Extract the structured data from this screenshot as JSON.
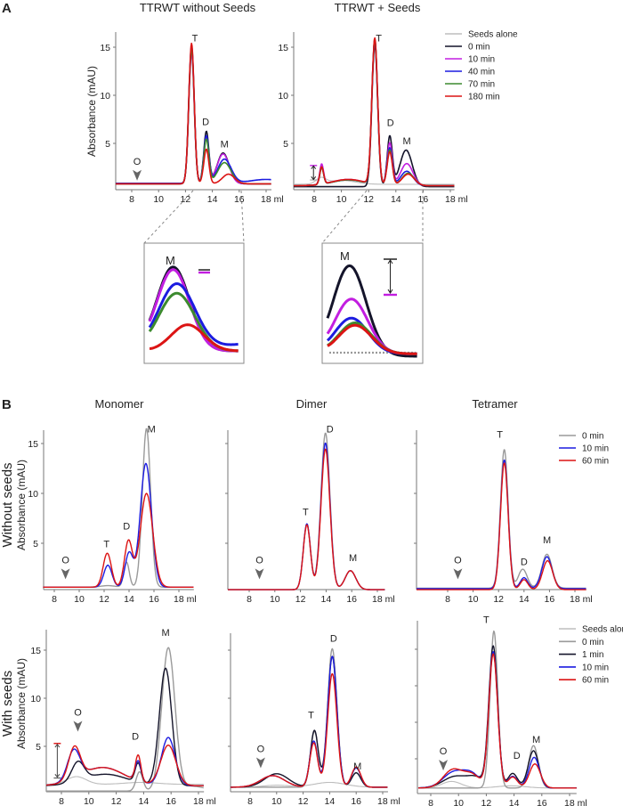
{
  "figure": {
    "panel_a_letter": "A",
    "panel_b_letter": "B",
    "panel_a_titles": [
      "TTRWT without Seeds",
      "TTRWT + Seeds"
    ],
    "panel_b_titles": [
      "Monomer",
      "Dimer",
      "Tetramer"
    ],
    "row_labels": [
      "Without seeds",
      "With seeds"
    ],
    "ylabel": "Absorbance (mAU)",
    "inset_label": "M"
  },
  "colors": {
    "seeds_alone": "#bdbdbd",
    "black": "#14142a",
    "gray": "#9a9a9a",
    "magenta": "#c21ee0",
    "blue": "#1c1ce0",
    "green": "#3c8a2e",
    "red": "#dc1414"
  },
  "chart_data": [
    {
      "id": "A1",
      "type": "line",
      "title": "TTRWT without Seeds",
      "xlabel_unit": "ml",
      "xticks": [
        8,
        10,
        12,
        14,
        16,
        18
      ],
      "yticks": [
        5,
        10,
        15
      ],
      "show_ytick_labels": true,
      "ylabel": "Absorbance (mAU)",
      "annotations": [
        "T",
        "D",
        "M",
        "O"
      ],
      "note": "series given as baseline plus peaks [elution volume ml, height mAU, width ml]",
      "series": [
        {
          "name": "0 min",
          "color": "black",
          "baseline": 0.8,
          "peaks": [
            [
              12.45,
              14.2,
              0.2
            ],
            [
              13.55,
              5.4,
              0.19
            ],
            [
              14.8,
              3.2,
              0.45
            ]
          ]
        },
        {
          "name": "10 min",
          "color": "magenta",
          "baseline": 0.8,
          "peaks": [
            [
              12.45,
              13.6,
              0.2
            ],
            [
              13.55,
              4.7,
              0.19
            ],
            [
              14.8,
              3.1,
              0.45
            ]
          ]
        },
        {
          "name": "40 min",
          "color": "blue",
          "baseline": 0.85,
          "peaks": [
            [
              12.45,
              14.3,
              0.2
            ],
            [
              13.55,
              4.9,
              0.19
            ],
            [
              14.9,
              2.5,
              0.5
            ],
            [
              18,
              0.4,
              1.2
            ]
          ]
        },
        {
          "name": "70 min",
          "color": "green",
          "baseline": 0.8,
          "peaks": [
            [
              12.45,
              14.0,
              0.2
            ],
            [
              13.55,
              4.6,
              0.19
            ],
            [
              14.9,
              2.2,
              0.5
            ]
          ]
        },
        {
          "name": "180 min",
          "color": "red",
          "baseline": 0.8,
          "peaks": [
            [
              12.45,
              14.6,
              0.2
            ],
            [
              13.55,
              3.6,
              0.19
            ],
            [
              15.2,
              1.0,
              0.45
            ]
          ]
        }
      ]
    },
    {
      "id": "A2",
      "type": "line",
      "title": "TTRWT + Seeds",
      "xlabel_unit": "ml",
      "xticks": [
        8,
        10,
        12,
        14,
        16,
        18
      ],
      "yticks": [
        5,
        10,
        15
      ],
      "show_ytick_labels": true,
      "annotations": [
        "T",
        "D",
        "M"
      ],
      "legend": [
        "Seeds alone",
        "0 min",
        "10 min",
        "40 min",
        "70 min",
        "180 min"
      ],
      "legend_position": "top-right",
      "series": [
        {
          "name": "Seeds alone",
          "color": "seeds_alone",
          "baseline": 0.75,
          "peaks": [
            [
              8.5,
              0.6,
              0.35
            ],
            [
              10,
              0.4,
              1.0
            ]
          ]
        },
        {
          "name": "0 min",
          "color": "black",
          "baseline": 0.5,
          "peaks": [
            [
              12.45,
              14.8,
              0.21
            ],
            [
              13.55,
              5.2,
              0.19
            ],
            [
              14.75,
              3.8,
              0.45
            ]
          ]
        },
        {
          "name": "10 min",
          "color": "magenta",
          "baseline": 0.6,
          "peaks": [
            [
              8.55,
              2.1,
              0.14
            ],
            [
              10.5,
              0.65,
              1.2
            ],
            [
              12.45,
              15.0,
              0.21
            ],
            [
              13.55,
              4.4,
              0.19
            ],
            [
              14.8,
              2.3,
              0.45
            ]
          ]
        },
        {
          "name": "40 min",
          "color": "blue",
          "baseline": 0.6,
          "peaks": [
            [
              8.55,
              1.8,
              0.14
            ],
            [
              10.5,
              0.6,
              1.2
            ],
            [
              12.45,
              15.0,
              0.21
            ],
            [
              13.55,
              3.9,
              0.19
            ],
            [
              14.8,
              1.5,
              0.45
            ]
          ]
        },
        {
          "name": "70 min",
          "color": "green",
          "baseline": 0.6,
          "peaks": [
            [
              8.55,
              1.7,
              0.14
            ],
            [
              10.5,
              0.6,
              1.2
            ],
            [
              12.45,
              15.1,
              0.21
            ],
            [
              13.55,
              3.7,
              0.19
            ],
            [
              14.9,
              1.3,
              0.45
            ]
          ]
        },
        {
          "name": "180 min",
          "color": "red",
          "baseline": 0.6,
          "peaks": [
            [
              8.55,
              1.8,
              0.14
            ],
            [
              10.5,
              0.65,
              1.2
            ],
            [
              12.45,
              15.2,
              0.21
            ],
            [
              13.55,
              3.5,
              0.19
            ],
            [
              14.9,
              1.2,
              0.45
            ]
          ]
        }
      ]
    },
    {
      "id": "B1m",
      "type": "line",
      "title": "Monomer",
      "row": "Without seeds",
      "xlabel_unit": "ml",
      "xticks": [
        8,
        10,
        12,
        14,
        16,
        18
      ],
      "yticks": [
        5,
        10,
        15
      ],
      "show_ytick_labels": true,
      "ylabel": "Absorbance (mAU)",
      "annotations": [
        "T",
        "D",
        "M",
        "O"
      ],
      "series": [
        {
          "name": "0 min",
          "color": "gray",
          "baseline": 0.6,
          "peaks": [
            [
              12.3,
              0.15,
              0.6
            ],
            [
              13.8,
              2.5,
              0.22
            ],
            [
              15.4,
              15.9,
              0.33
            ]
          ]
        },
        {
          "name": "10 min",
          "color": "blue",
          "baseline": 0.6,
          "peaks": [
            [
              12.3,
              2.2,
              0.33
            ],
            [
              14.0,
              3.4,
              0.32
            ],
            [
              15.35,
              12.4,
              0.45
            ]
          ]
        },
        {
          "name": "60 min",
          "color": "red",
          "baseline": 0.6,
          "peaks": [
            [
              12.25,
              3.4,
              0.33
            ],
            [
              13.95,
              4.6,
              0.32
            ],
            [
              15.4,
              9.4,
              0.5
            ]
          ]
        }
      ]
    },
    {
      "id": "B1d",
      "type": "line",
      "title": "Dimer",
      "row": "Without seeds",
      "xlabel_unit": "ml",
      "xticks": [
        8,
        10,
        12,
        14,
        16,
        18
      ],
      "yticks": [
        5,
        10,
        15
      ],
      "show_ytick_labels": false,
      "annotations": [
        "T",
        "D",
        "M",
        "O"
      ],
      "series": [
        {
          "name": "0 min",
          "color": "gray",
          "baseline": 0.35,
          "peaks": [
            [
              12.5,
              6.6,
              0.28
            ],
            [
              13.95,
              15.7,
              0.35
            ],
            [
              15.9,
              1.9,
              0.42
            ]
          ]
        },
        {
          "name": "10 min",
          "color": "blue",
          "baseline": 0.35,
          "peaks": [
            [
              12.5,
              6.6,
              0.28
            ],
            [
              13.95,
              14.7,
              0.35
            ],
            [
              15.9,
              1.9,
              0.42
            ]
          ]
        },
        {
          "name": "60 min",
          "color": "red",
          "baseline": 0.35,
          "peaks": [
            [
              12.5,
              6.5,
              0.28
            ],
            [
              13.95,
              14.1,
              0.35
            ],
            [
              15.9,
              1.9,
              0.42
            ]
          ]
        }
      ]
    },
    {
      "id": "B1t",
      "type": "line",
      "title": "Tetramer",
      "row": "Without seeds",
      "xlabel_unit": "ml",
      "xticks": [
        8,
        10,
        12,
        14,
        16,
        18
      ],
      "yticks": [
        5,
        10,
        15
      ],
      "show_ytick_labels": false,
      "annotations": [
        "T",
        "D",
        "M",
        "O"
      ],
      "legend": [
        "0 min",
        "10 min",
        "60 min"
      ],
      "legend_position": "top-right",
      "series": [
        {
          "name": "0 min",
          "color": "gray",
          "baseline": 0.5,
          "peaks": [
            [
              12.45,
              13.9,
              0.3
            ],
            [
              13.9,
              1.9,
              0.35
            ],
            [
              15.8,
              3.4,
              0.4
            ]
          ]
        },
        {
          "name": "10 min",
          "color": "blue",
          "baseline": 0.45,
          "peaks": [
            [
              12.45,
              12.9,
              0.3
            ],
            [
              14.0,
              1.1,
              0.3
            ],
            [
              15.8,
              3.2,
              0.4
            ]
          ]
        },
        {
          "name": "60 min",
          "color": "red",
          "baseline": 0.35,
          "peaks": [
            [
              12.45,
              12.7,
              0.3
            ],
            [
              14.0,
              1.0,
              0.3
            ],
            [
              15.85,
              2.9,
              0.4
            ]
          ]
        }
      ]
    },
    {
      "id": "B2m",
      "type": "line",
      "row": "With seeds",
      "xlabel_unit": "ml",
      "xticks": [
        8,
        10,
        12,
        14,
        16,
        18
      ],
      "yticks": [
        5,
        10,
        15
      ],
      "show_ytick_labels": true,
      "ylabel": "Absorbance (mAU)",
      "annotations": [
        "O",
        "D",
        "M"
      ],
      "series": [
        {
          "name": "Seeds alone",
          "color": "seeds_alone",
          "baseline": 1.05,
          "peaks": [
            [
              9.1,
              0.8,
              0.7
            ],
            [
              13.8,
              0.2,
              1.2
            ]
          ]
        },
        {
          "name": "0 min",
          "color": "gray",
          "baseline": 0.35,
          "peaks": [
            [
              13.7,
              2.0,
              0.25
            ],
            [
              15.8,
              14.8,
              0.48
            ],
            [
              17.5,
              0.5,
              1.0
            ]
          ]
        },
        {
          "name": "1 min",
          "color": "black",
          "baseline": 0.9,
          "peaks": [
            [
              9.2,
              2.0,
              0.45
            ],
            [
              11.2,
              1.2,
              1.6
            ],
            [
              13.6,
              2.0,
              0.22
            ],
            [
              15.6,
              12.2,
              0.45
            ]
          ]
        },
        {
          "name": "10 min",
          "color": "blue",
          "baseline": 0.9,
          "peaks": [
            [
              8.9,
              3.0,
              0.45
            ],
            [
              11.0,
              1.9,
              1.6
            ],
            [
              13.6,
              2.1,
              0.22
            ],
            [
              15.8,
              5.0,
              0.5
            ]
          ]
        },
        {
          "name": "60 min",
          "color": "red",
          "baseline": 0.9,
          "peaks": [
            [
              8.95,
              3.3,
              0.42
            ],
            [
              11.0,
              1.9,
              1.6
            ],
            [
              13.6,
              2.7,
              0.2
            ],
            [
              15.8,
              4.2,
              0.55
            ]
          ]
        }
      ]
    },
    {
      "id": "B2d",
      "type": "line",
      "row": "With seeds",
      "xlabel_unit": "ml",
      "xticks": [
        8,
        10,
        12,
        14,
        16,
        18
      ],
      "yticks": [
        5,
        10,
        15
      ],
      "show_ytick_labels": false,
      "annotations": [
        "T",
        "D",
        "M",
        "O"
      ],
      "series": [
        {
          "name": "Seeds alone",
          "color": "seeds_alone",
          "baseline": 0.75,
          "peaks": [
            [
              14,
              0.5,
              1.2
            ],
            [
              10,
              0.2,
              1.0
            ]
          ]
        },
        {
          "name": "0 min",
          "color": "gray",
          "baseline": 0.75,
          "peaks": [
            [
              12.85,
              5.8,
              0.3
            ],
            [
              14.2,
              14.4,
              0.35
            ],
            [
              16.0,
              1.5,
              0.35
            ]
          ]
        },
        {
          "name": "1 min",
          "color": "black",
          "baseline": 0.75,
          "peaks": [
            [
              10.0,
              1.4,
              0.9
            ],
            [
              12.85,
              5.9,
              0.3
            ],
            [
              14.2,
              13.6,
              0.35
            ],
            [
              16.0,
              1.5,
              0.35
            ]
          ]
        },
        {
          "name": "10 min",
          "color": "blue",
          "baseline": 0.75,
          "peaks": [
            [
              9.7,
              1.2,
              0.9
            ],
            [
              12.8,
              4.8,
              0.3
            ],
            [
              14.2,
              13.6,
              0.35
            ],
            [
              16.0,
              2.0,
              0.35
            ]
          ]
        },
        {
          "name": "60 min",
          "color": "red",
          "baseline": 0.75,
          "peaks": [
            [
              9.7,
              1.2,
              0.9
            ],
            [
              12.8,
              4.6,
              0.3
            ],
            [
              14.2,
              11.8,
              0.35
            ],
            [
              16.0,
              2.1,
              0.35
            ]
          ]
        }
      ]
    },
    {
      "id": "B2t",
      "type": "line",
      "row": "With seeds",
      "xlabel_unit": "ml",
      "xticks": [
        8,
        10,
        12,
        14,
        16,
        18
      ],
      "yticks": [
        5,
        10,
        15,
        20
      ],
      "show_ytick_labels": false,
      "annotations": [
        "T",
        "D",
        "M",
        "O"
      ],
      "legend": [
        "Seeds alone",
        "0 min",
        "1 min",
        "10 min",
        "60 min"
      ],
      "legend_position": "top-right",
      "series": [
        {
          "name": "Seeds alone",
          "color": "seeds_alone",
          "baseline": 1.0,
          "peaks": [
            [
              9.5,
              0.9,
              0.7
            ],
            [
              13.8,
              0.3,
              1.0
            ]
          ]
        },
        {
          "name": "0 min",
          "color": "gray",
          "baseline": 1.0,
          "peaks": [
            [
              12.55,
              21.5,
              0.28
            ],
            [
              15.4,
              5.8,
              0.35
            ]
          ]
        },
        {
          "name": "1 min",
          "color": "black",
          "baseline": 1.0,
          "peaks": [
            [
              9.8,
              1.6,
              0.9
            ],
            [
              11.3,
              1.2,
              0.6
            ],
            [
              12.5,
              19.3,
              0.32
            ],
            [
              13.9,
              2.0,
              0.35
            ],
            [
              15.4,
              5.1,
              0.38
            ]
          ]
        },
        {
          "name": "10 min",
          "color": "blue",
          "baseline": 1.0,
          "peaks": [
            [
              9.7,
              2.2,
              0.8
            ],
            [
              11.0,
              1.6,
              0.6
            ],
            [
              12.5,
              18.6,
              0.32
            ],
            [
              13.9,
              1.6,
              0.35
            ],
            [
              15.45,
              4.2,
              0.38
            ]
          ]
        },
        {
          "name": "60 min",
          "color": "red",
          "baseline": 1.0,
          "peaks": [
            [
              9.6,
              2.5,
              0.7
            ],
            [
              11.0,
              1.7,
              0.6
            ],
            [
              12.5,
              18.3,
              0.32
            ],
            [
              13.9,
              1.5,
              0.35
            ],
            [
              15.5,
              3.3,
              0.4
            ]
          ]
        }
      ]
    }
  ]
}
